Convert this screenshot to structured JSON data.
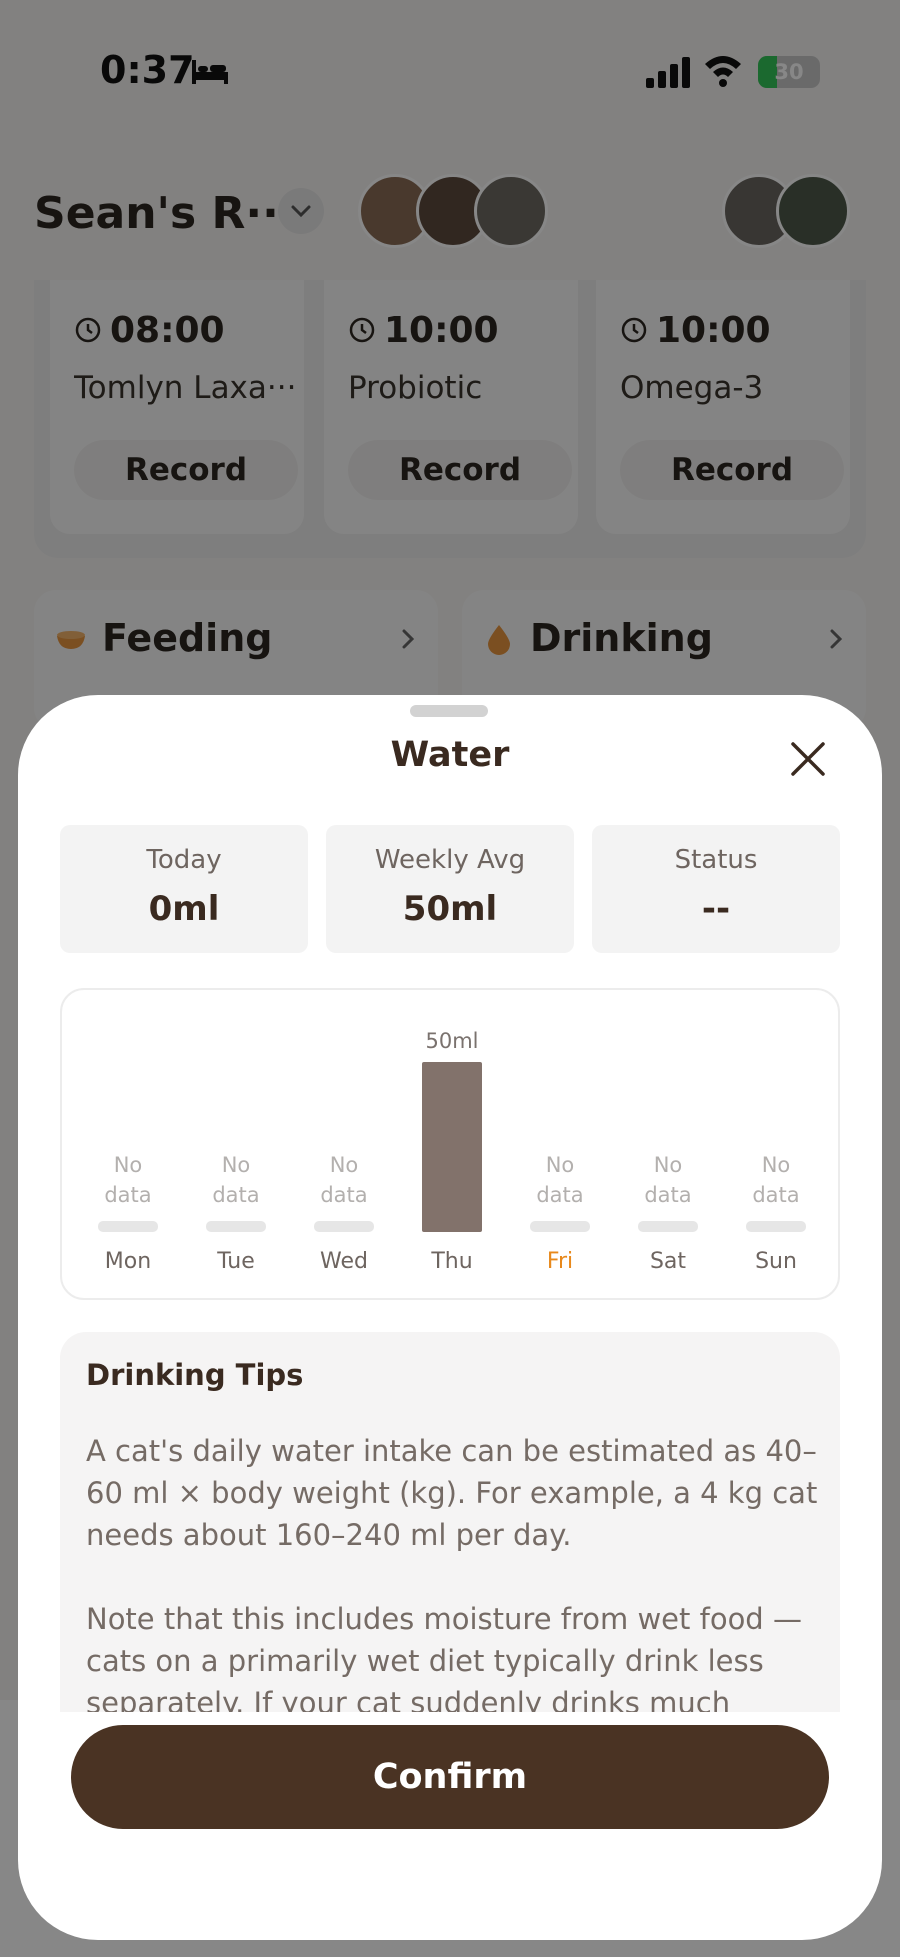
{
  "status_bar": {
    "time": "0:37",
    "battery": "30",
    "battery_level": 0.3
  },
  "header": {
    "room_name": "Sean's R···"
  },
  "medications": [
    {
      "time": "08:00",
      "name": "Tomlyn Laxa···",
      "action": "Record"
    },
    {
      "time": "10:00",
      "name": "Probiotic",
      "action": "Record"
    },
    {
      "time": "10:00",
      "name": "Omega-3",
      "action": "Record"
    }
  ],
  "widgets": {
    "feeding": {
      "title": "Feeding"
    },
    "drinking": {
      "title": "Drinking"
    }
  },
  "modal": {
    "title": "Water",
    "stats": [
      {
        "label": "Today",
        "value": "0ml"
      },
      {
        "label": "Weekly Avg",
        "value": "50ml"
      },
      {
        "label": "Status",
        "value": "--"
      }
    ],
    "tips": {
      "title": "Drinking Tips",
      "text": "A cat's daily water intake can be estimated as 40–60 ml × body weight (kg). For example, a 4 kg cat needs about 160–240 ml per day.\n\nNote that this includes moisture from wet food — cats on a primarily wet diet typically drink less separately. If your cat suddenly drinks much"
    },
    "confirm_label": "Confirm"
  },
  "colors": {
    "accent_brown": "#4a3323",
    "bar_fill": "#82726b",
    "today_highlight": "#e8891c",
    "empty_bar": "#e6e6e6"
  },
  "chart_data": {
    "type": "bar",
    "categories": [
      "Mon",
      "Tue",
      "Wed",
      "Thu",
      "Fri",
      "Sat",
      "Sun"
    ],
    "values": [
      null,
      null,
      null,
      50,
      null,
      null,
      null
    ],
    "data_labels": [
      "",
      "",
      "",
      "50ml",
      "",
      "",
      ""
    ],
    "no_data_label": "No\ndata",
    "highlight_category": "Fri",
    "ylim": [
      0,
      50
    ],
    "grid": false
  }
}
